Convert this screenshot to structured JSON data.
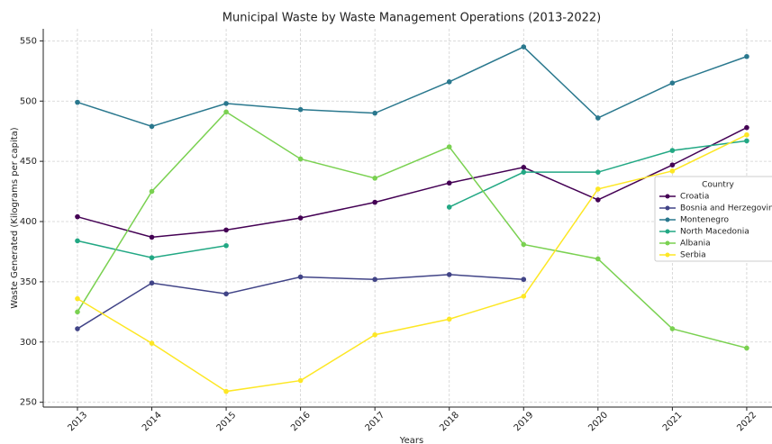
{
  "chart_data": {
    "type": "line",
    "title": "Municipal Waste by Waste Management Operations (2013-2022)",
    "xlabel": "Years",
    "ylabel": "Waste Generated (Kilograms per capita)",
    "x": [
      2013,
      2014,
      2015,
      2016,
      2017,
      2018,
      2019,
      2020,
      2021,
      2022
    ],
    "series": [
      {
        "name": "Croatia",
        "color": "#440154",
        "values": [
          404,
          387,
          393,
          403,
          416,
          432,
          445,
          418,
          447,
          478
        ]
      },
      {
        "name": "Bosnia and Herzegovina",
        "color": "#414487",
        "values": [
          311,
          349,
          340,
          354,
          352,
          356,
          352,
          null,
          null,
          null
        ]
      },
      {
        "name": "Montenegro",
        "color": "#2a788e",
        "values": [
          499,
          479,
          498,
          493,
          490,
          516,
          545,
          486,
          515,
          537
        ]
      },
      {
        "name": "North Macedonia",
        "color": "#22a884",
        "values": [
          384,
          370,
          380,
          null,
          null,
          412,
          441,
          441,
          459,
          467
        ]
      },
      {
        "name": "Albania",
        "color": "#7ad151",
        "values": [
          325,
          425,
          491,
          452,
          436,
          462,
          381,
          369,
          311,
          295
        ]
      },
      {
        "name": "Serbia",
        "color": "#fde725",
        "values": [
          336,
          299,
          259,
          268,
          306,
          319,
          338,
          427,
          442,
          472
        ]
      }
    ],
    "legend_title": "Country",
    "legend_loc": "right",
    "xlim": [
      2012.54,
      2022.34
    ],
    "xticks": [
      2013,
      2014,
      2015,
      2016,
      2017,
      2018,
      2019,
      2020,
      2021,
      2022
    ],
    "ylim": [
      246,
      560
    ],
    "yticks": [
      250,
      300,
      350,
      400,
      450,
      500,
      550
    ],
    "grid": true
  }
}
